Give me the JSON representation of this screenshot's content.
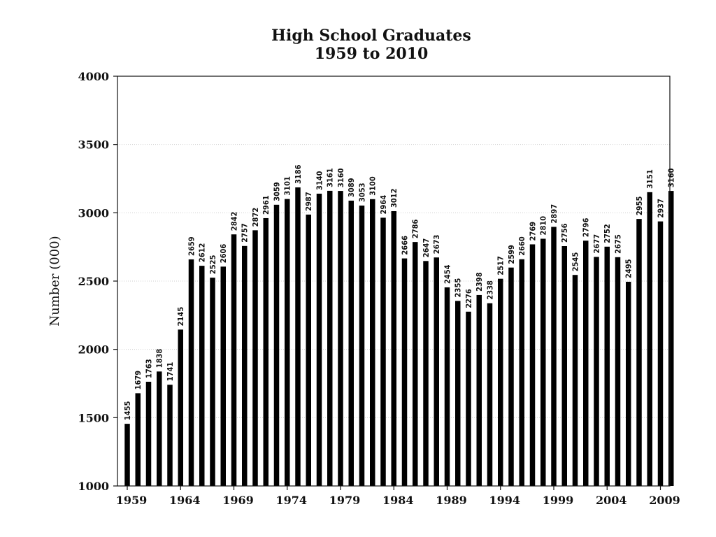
{
  "chart_data": {
    "type": "bar",
    "title": "High School Graduates",
    "subtitle": "1959 to 2010",
    "xlabel": "",
    "ylabel": "Number (000)",
    "ylim": [
      1000,
      4000
    ],
    "yticks": [
      "1000",
      "1500",
      "2000",
      "2500",
      "3000",
      "3500",
      "4000"
    ],
    "xtick_labels": [
      "1959",
      "1964",
      "1969",
      "1974",
      "1979",
      "1984",
      "1989",
      "1994",
      "1999",
      "2004",
      "2009"
    ],
    "grid": true,
    "categories": [
      "1959",
      "1960",
      "1961",
      "1962",
      "1963",
      "1964",
      "1965",
      "1966",
      "1967",
      "1968",
      "1969",
      "1970",
      "1971",
      "1972",
      "1973",
      "1974",
      "1975",
      "1976",
      "1977",
      "1978",
      "1979",
      "1980",
      "1981",
      "1982",
      "1983",
      "1984",
      "1985",
      "1986",
      "1987",
      "1988",
      "1989",
      "1990",
      "1991",
      "1992",
      "1993",
      "1994",
      "1995",
      "1996",
      "1997",
      "1998",
      "1999",
      "2000",
      "2001",
      "2002",
      "2003",
      "2004",
      "2005",
      "2006",
      "2007",
      "2008",
      "2009",
      "2010"
    ],
    "values": [
      1455,
      1679,
      1763,
      1838,
      1741,
      2145,
      2659,
      2612,
      2525,
      2606,
      2842,
      2757,
      2872,
      2961,
      3059,
      3101,
      3186,
      2987,
      3140,
      3161,
      3160,
      3089,
      3053,
      3100,
      2964,
      3012,
      2666,
      2786,
      2647,
      2673,
      2454,
      2355,
      2276,
      2398,
      2338,
      2517,
      2599,
      2660,
      2769,
      2810,
      2897,
      2756,
      2545,
      2796,
      2677,
      2752,
      2675,
      2495,
      2955,
      3151,
      2937,
      3160
    ],
    "data_labels": [
      "1455",
      "1679",
      "1763",
      "1838",
      "1741",
      "2145",
      "2659",
      "2612",
      "2525",
      "2606",
      "2842",
      "2757",
      "2872",
      "2961",
      "3059",
      "3101",
      "3186",
      "2987",
      "3140",
      "3161",
      "3160",
      "3089",
      "3053",
      "3100",
      "2964",
      "3012",
      "2666",
      "2786",
      "2647",
      "2673",
      "2454",
      "2355",
      "2276",
      "2398",
      "2338",
      "2517",
      "2599",
      "2660",
      "2769",
      "2810",
      "2897",
      "2756",
      "2545",
      "2796",
      "2677",
      "2752",
      "2675",
      "2495",
      "2955",
      "3151",
      "2937",
      "3160"
    ]
  }
}
